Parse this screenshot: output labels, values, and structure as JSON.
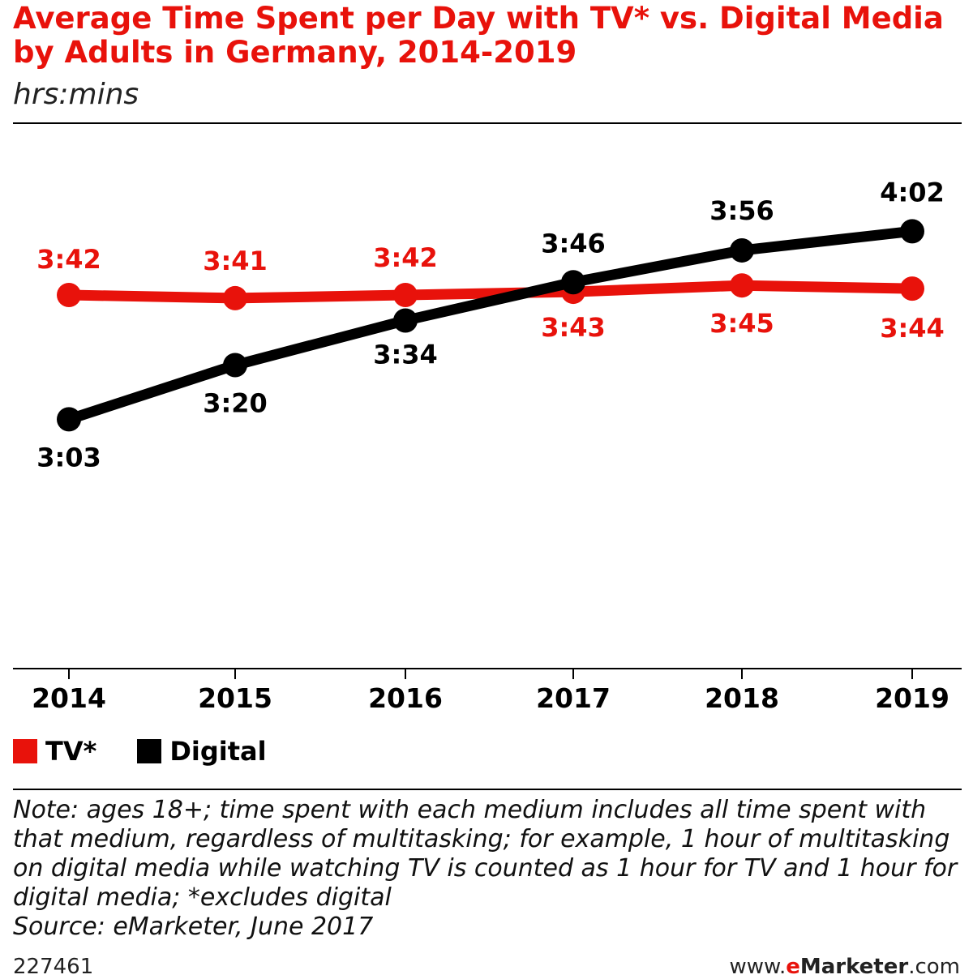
{
  "header": {
    "title": "Average Time Spent per Day with TV* vs. Digital Media by Adults in Germany, 2014-2019",
    "subtitle": "hrs:mins"
  },
  "legend": {
    "tv_label": "TV*",
    "digital_label": "Digital"
  },
  "notes": {
    "note": "Note: ages 18+; time spent with each medium includes all time spent with that medium, regardless of multitasking; for example, 1 hour of multitasking on digital media while watching TV is counted as 1 hour for TV and 1 hour for digital media; *excludes digital",
    "source": "Source: eMarketer, June 2017"
  },
  "footer": {
    "chart_id": "227461",
    "brand_prefix": "www.",
    "brand_e": "e",
    "brand_rest": "Marketer",
    "brand_suffix": ".com"
  },
  "colors": {
    "tv": "#e8120b",
    "digital": "#000000"
  },
  "chart_data": {
    "type": "line",
    "title": "Average Time Spent per Day with TV* vs. Digital Media by Adults in Germany, 2014-2019",
    "subtitle": "hrs:mins",
    "categories": [
      "2014",
      "2015",
      "2016",
      "2017",
      "2018",
      "2019"
    ],
    "series": [
      {
        "name": "TV*",
        "color": "#e8120b",
        "values_minutes": [
          222,
          221,
          222,
          223,
          225,
          224
        ],
        "labels": [
          "3:42",
          "3:41",
          "3:42",
          "3:43",
          "3:45",
          "3:44"
        ]
      },
      {
        "name": "Digital",
        "color": "#000000",
        "values_minutes": [
          183,
          200,
          214,
          226,
          236,
          242
        ],
        "labels": [
          "3:03",
          "3:20",
          "3:34",
          "3:46",
          "3:56",
          "4:02"
        ]
      }
    ],
    "grid": false,
    "legend_position": "bottom-left"
  }
}
